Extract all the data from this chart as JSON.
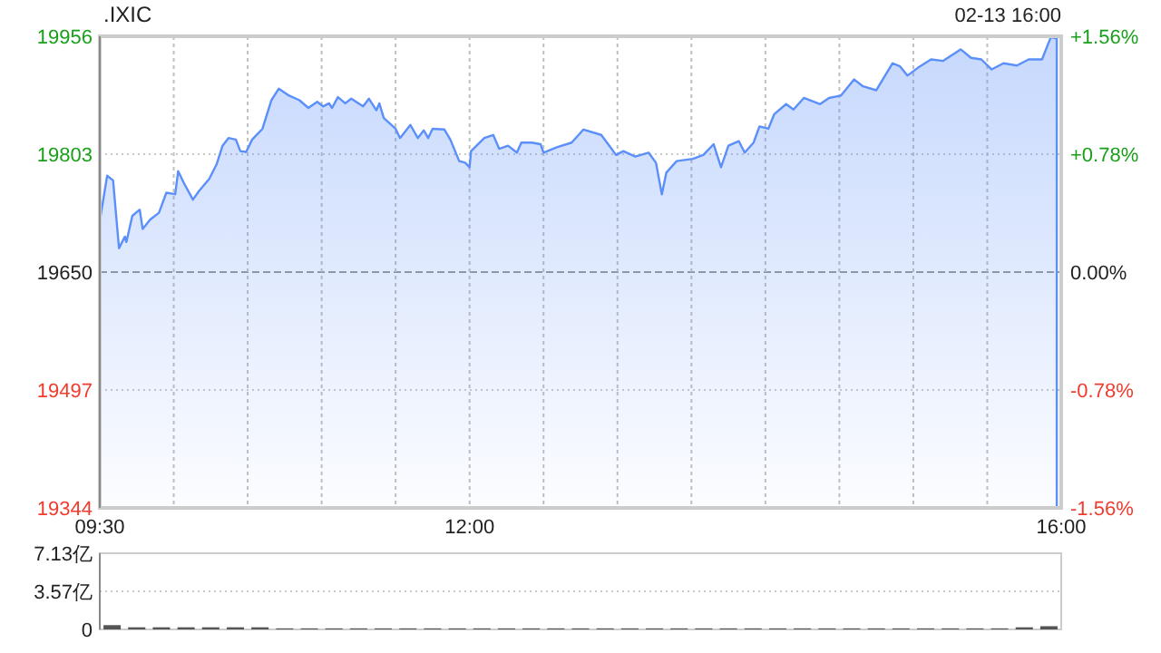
{
  "chart_data": [
    {
      "type": "area",
      "title": ".IXIC",
      "annotations": [
        "02-13 16:00"
      ],
      "xlim": [
        9.5,
        16
      ],
      "xticks": [
        {
          "value": 9.5,
          "label": "09:30"
        },
        {
          "value": 10,
          "label": null
        },
        {
          "value": 10.5,
          "label": null
        },
        {
          "value": 11,
          "label": null
        },
        {
          "value": 11.5,
          "label": null
        },
        {
          "value": 12,
          "label": "12:00"
        },
        {
          "value": 12.5,
          "label": null
        },
        {
          "value": 13,
          "label": null
        },
        {
          "value": 13.5,
          "label": null
        },
        {
          "value": 14,
          "label": null
        },
        {
          "value": 14.5,
          "label": null
        },
        {
          "value": 15,
          "label": null
        },
        {
          "value": 15.5,
          "label": null
        },
        {
          "value": 16,
          "label": "16:00"
        }
      ],
      "ylim": [
        19344,
        19956
      ],
      "yticks": [
        19344,
        19497,
        19650,
        19803,
        19956
      ],
      "y2lim": [
        -1.56,
        1.56
      ],
      "y2ticks": [
        {
          "value": -1.56,
          "label": "-1.56%"
        },
        {
          "value": -0.78,
          "label": "-0.78%"
        },
        {
          "value": 0,
          "label": "0.00%"
        },
        {
          "value": 0.78,
          "label": "+0.78%"
        },
        {
          "value": 1.56,
          "label": "+1.56%"
        }
      ],
      "grid": true,
      "ref_lines": [
        {
          "axis": "y",
          "value": 19650,
          "color": "#999999",
          "line_style": "dashed"
        }
      ],
      "series": [
        {
          "color": "#5b8ff9",
          "x": [
            9.5,
            9.55,
            9.59,
            9.63,
            9.67,
            9.68,
            9.72,
            9.77,
            9.79,
            9.84,
            9.9,
            9.95,
            10.01,
            10.03,
            10.07,
            10.13,
            10.17,
            10.24,
            10.29,
            10.33,
            10.37,
            10.42,
            10.45,
            10.49,
            10.53,
            10.6,
            10.66,
            10.71,
            10.78,
            10.85,
            10.91,
            10.97,
            11.01,
            11.05,
            11.07,
            11.11,
            11.16,
            11.2,
            11.28,
            11.32,
            11.37,
            11.39,
            11.42,
            11.5,
            11.53,
            11.6,
            11.65,
            11.69,
            11.72,
            11.75,
            11.83,
            11.87,
            11.93,
            11.97,
            12.0,
            12.01,
            12.1,
            12.16,
            12.2,
            12.26,
            12.32,
            12.35,
            12.42,
            12.48,
            12.5,
            12.59,
            12.69,
            12.77,
            12.89,
            12.96,
            12.99,
            13.04,
            13.12,
            13.21,
            13.26,
            13.3,
            13.33,
            13.4,
            13.51,
            13.58,
            13.65,
            13.7,
            13.75,
            13.82,
            13.86,
            13.92,
            13.96,
            14.02,
            14.06,
            14.14,
            14.19,
            14.26,
            14.37,
            14.43,
            14.51,
            14.6,
            14.66,
            14.75,
            14.86,
            14.91,
            14.96,
            15.03,
            15.12,
            15.2,
            15.32,
            15.39,
            15.46,
            15.53,
            15.61,
            15.7,
            15.78,
            15.87,
            15.93,
            15.97
          ],
          "values": [
            19716,
            19775,
            19769,
            19681,
            19696,
            19689,
            19723,
            19731,
            19706,
            19718,
            19727,
            19753,
            19751,
            19781,
            19765,
            19744,
            19755,
            19771,
            19790,
            19814,
            19824,
            19822,
            19807,
            19806,
            19822,
            19836,
            19873,
            19888,
            19879,
            19873,
            19863,
            19871,
            19865,
            19869,
            19863,
            19877,
            19869,
            19875,
            19865,
            19875,
            19860,
            19869,
            19850,
            19836,
            19824,
            19841,
            19824,
            19834,
            19824,
            19836,
            19835,
            19822,
            19794,
            19792,
            19786,
            19807,
            19824,
            19828,
            19810,
            19814,
            19805,
            19818,
            19818,
            19816,
            19805,
            19812,
            19818,
            19835,
            19828,
            19810,
            19802,
            19807,
            19800,
            19805,
            19792,
            19751,
            19779,
            19794,
            19797,
            19802,
            19816,
            19786,
            19814,
            19820,
            19805,
            19818,
            19839,
            19836,
            19855,
            19868,
            19861,
            19876,
            19868,
            19876,
            19879,
            19900,
            19891,
            19886,
            19921,
            19917,
            19905,
            19915,
            19926,
            19924,
            19939,
            19928,
            19926,
            19913,
            19921,
            19918,
            19926,
            19926,
            19955,
            19953
          ]
        }
      ]
    },
    {
      "type": "bar",
      "tick_labels": "y",
      "grid": "y",
      "categories": [
        null,
        null,
        null,
        null,
        null,
        null,
        null,
        null,
        null,
        null,
        null,
        null,
        null,
        null,
        null,
        null,
        null,
        null,
        null,
        null,
        null,
        null,
        null,
        null,
        null,
        null,
        null,
        null,
        null,
        null,
        null,
        null,
        null,
        null,
        null,
        null,
        null,
        null,
        null
      ],
      "ylim": [
        0,
        7.13
      ],
      "yticks": [
        {
          "value": 0,
          "label": "0"
        },
        {
          "value": 3.57,
          "label": "3.57亿"
        },
        {
          "value": 7.13,
          "label": "7.13亿"
        }
      ],
      "series": [
        {
          "color": "#555555",
          "values": [
            0.4,
            0.2,
            0.2,
            0.2,
            0.2,
            0.2,
            0.2,
            0.1,
            0.1,
            0.1,
            0.1,
            0.1,
            0.1,
            0.1,
            0.1,
            0.1,
            0.1,
            0.1,
            0.1,
            0.1,
            0.1,
            0.1,
            0.1,
            0.1,
            0.1,
            0.1,
            0.1,
            0.1,
            0.1,
            0.1,
            0.1,
            0.1,
            0.1,
            0.1,
            0.1,
            0.1,
            0.1,
            0.2,
            0.3
          ]
        }
      ]
    }
  ]
}
